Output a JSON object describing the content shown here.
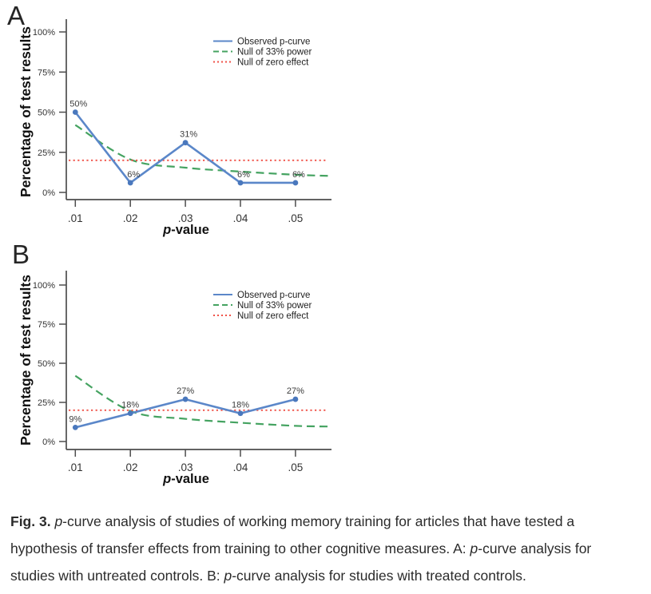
{
  "figure": {
    "panel_a_label": "A",
    "panel_b_label": "B"
  },
  "caption": {
    "lines": [
      [
        {
          "t": "Fig. 3. ",
          "b": true
        },
        {
          "t": "p",
          "i": true
        },
        {
          "t": "-curve analysis of studies of working memory training for articles that have tested a"
        }
      ],
      [
        {
          "t": "hypothesis of transfer effects from training to other cognitive measures. A: "
        },
        {
          "t": "p",
          "i": true
        },
        {
          "t": "-curve analysis for"
        }
      ],
      [
        {
          "t": "studies with untreated controls. B: "
        },
        {
          "t": "p",
          "i": true
        },
        {
          "t": "-curve analysis for studies with treated controls."
        }
      ]
    ]
  },
  "chart_data": [
    {
      "id": "A",
      "type": "line",
      "title": "",
      "xlabel": "p-value",
      "ylabel": "Percentage of test results",
      "x_ticks": [
        ".01",
        ".02",
        ".03",
        ".04",
        ".05"
      ],
      "x_tick_values": [
        0.01,
        0.02,
        0.03,
        0.04,
        0.05
      ],
      "y_ticks": [
        "0%",
        "25%",
        "50%",
        "75%",
        "100%"
      ],
      "y_tick_values": [
        0,
        25,
        50,
        75,
        100
      ],
      "ylim": [
        0,
        100
      ],
      "grid": false,
      "legend_position": "top-right",
      "series": [
        {
          "name": "Observed p-curve",
          "color": "#5b87c9",
          "marker_color": "#4a78bd",
          "style": "solid",
          "markers": true,
          "x": [
            0.01,
            0.02,
            0.03,
            0.04,
            0.05
          ],
          "values": [
            50,
            6,
            31,
            6,
            6
          ],
          "point_labels": [
            "50%",
            "6%",
            "31%",
            "6%",
            "6%"
          ]
        },
        {
          "name": "Null of 33% power",
          "color": "#45a361",
          "style": "dashed",
          "smooth": true,
          "x": [
            0.01,
            0.02,
            0.03,
            0.04,
            0.05,
            0.056
          ],
          "values": [
            42,
            20.5,
            15.4,
            13,
            11,
            10.3
          ]
        },
        {
          "name": "Null of zero effect",
          "color": "#f05248",
          "style": "dotted",
          "x": [
            0.0088,
            0.0558
          ],
          "values": [
            20,
            20
          ]
        }
      ]
    },
    {
      "id": "B",
      "type": "line",
      "title": "",
      "xlabel": "p-value",
      "ylabel": "Percentage of test results",
      "x_ticks": [
        ".01",
        ".02",
        ".03",
        ".04",
        ".05"
      ],
      "x_tick_values": [
        0.01,
        0.02,
        0.03,
        0.04,
        0.05
      ],
      "y_ticks": [
        "0%",
        "25%",
        "50%",
        "75%",
        "100%"
      ],
      "y_tick_values": [
        0,
        25,
        50,
        75,
        100
      ],
      "ylim": [
        0,
        100
      ],
      "grid": false,
      "legend_position": "top-right",
      "series": [
        {
          "name": "Observed p-curve",
          "color": "#5b87c9",
          "marker_color": "#4a78bd",
          "style": "solid",
          "markers": true,
          "x": [
            0.01,
            0.02,
            0.03,
            0.04,
            0.05
          ],
          "values": [
            9,
            18,
            27,
            18,
            27
          ],
          "point_labels": [
            "9%",
            "18%",
            "27%",
            "18%",
            "27%"
          ]
        },
        {
          "name": "Null of 33% power",
          "color": "#45a361",
          "style": "dashed",
          "smooth": true,
          "x": [
            0.01,
            0.02,
            0.03,
            0.04,
            0.05,
            0.056
          ],
          "values": [
            42,
            19.5,
            14.5,
            12,
            10,
            9.6
          ]
        },
        {
          "name": "Null of zero effect",
          "color": "#f05248",
          "style": "dotted",
          "x": [
            0.0088,
            0.0558
          ],
          "values": [
            20,
            20
          ]
        }
      ]
    }
  ],
  "style": {
    "axis_color": "#4d4d4d",
    "tick_text_color": "#333333",
    "point_label_color": "#3c3c3c",
    "axis_title_color": "#111111",
    "legend_text_color": "#222222"
  }
}
